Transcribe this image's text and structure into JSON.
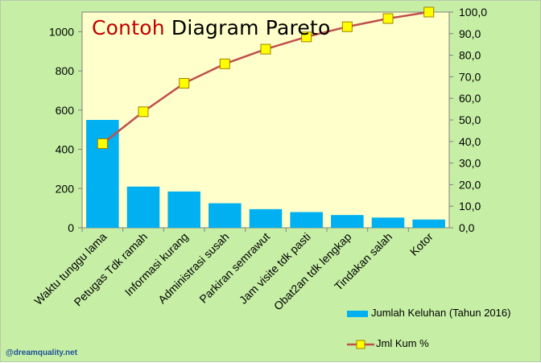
{
  "chart_data": {
    "type": "bar+line",
    "title_part1": "Contoh",
    "title_part2": "Diagram Pareto",
    "categories": [
      "Waktu tunggu lama",
      "Petugas Tdk ramah",
      "Informasi kurang",
      "Administrasi susah",
      "Parkiran semrawut",
      "Jam visite tdk pasti",
      "Obat2an tdk lengkap",
      "Tindakan salah",
      "Kotor"
    ],
    "series": [
      {
        "name": "Jumlah Keluhan (Tahun 2016)",
        "axis": "left",
        "kind": "bar",
        "values": [
          550,
          210,
          185,
          125,
          95,
          80,
          65,
          52,
          42
        ]
      },
      {
        "name": "Jml Kum %",
        "axis": "right",
        "kind": "line",
        "values": [
          39.0,
          53.8,
          67.0,
          76.0,
          82.8,
          88.5,
          93.2,
          97.0,
          100.0
        ]
      }
    ],
    "left_axis": {
      "ylim": [
        0,
        1100
      ],
      "ticks": [
        "0",
        "200",
        "400",
        "600",
        "800",
        "1000"
      ]
    },
    "right_axis": {
      "ylim": [
        0,
        100
      ],
      "ticks": [
        "0,0",
        "10,0",
        "20,0",
        "30,0",
        "40,0",
        "50,0",
        "60,0",
        "70,0",
        "80,0",
        "90,0",
        "100,0"
      ]
    },
    "colors": {
      "bar": "#00b0f0",
      "line": "#c0504d",
      "marker_fill": "#ffff00",
      "marker_edge": "#a08000",
      "plot_bg": "#ffffcc",
      "outer_bg": "#c6efa5"
    },
    "legend_position": "bottom-right",
    "grid": false
  },
  "watermark": "@dreamquality.net"
}
